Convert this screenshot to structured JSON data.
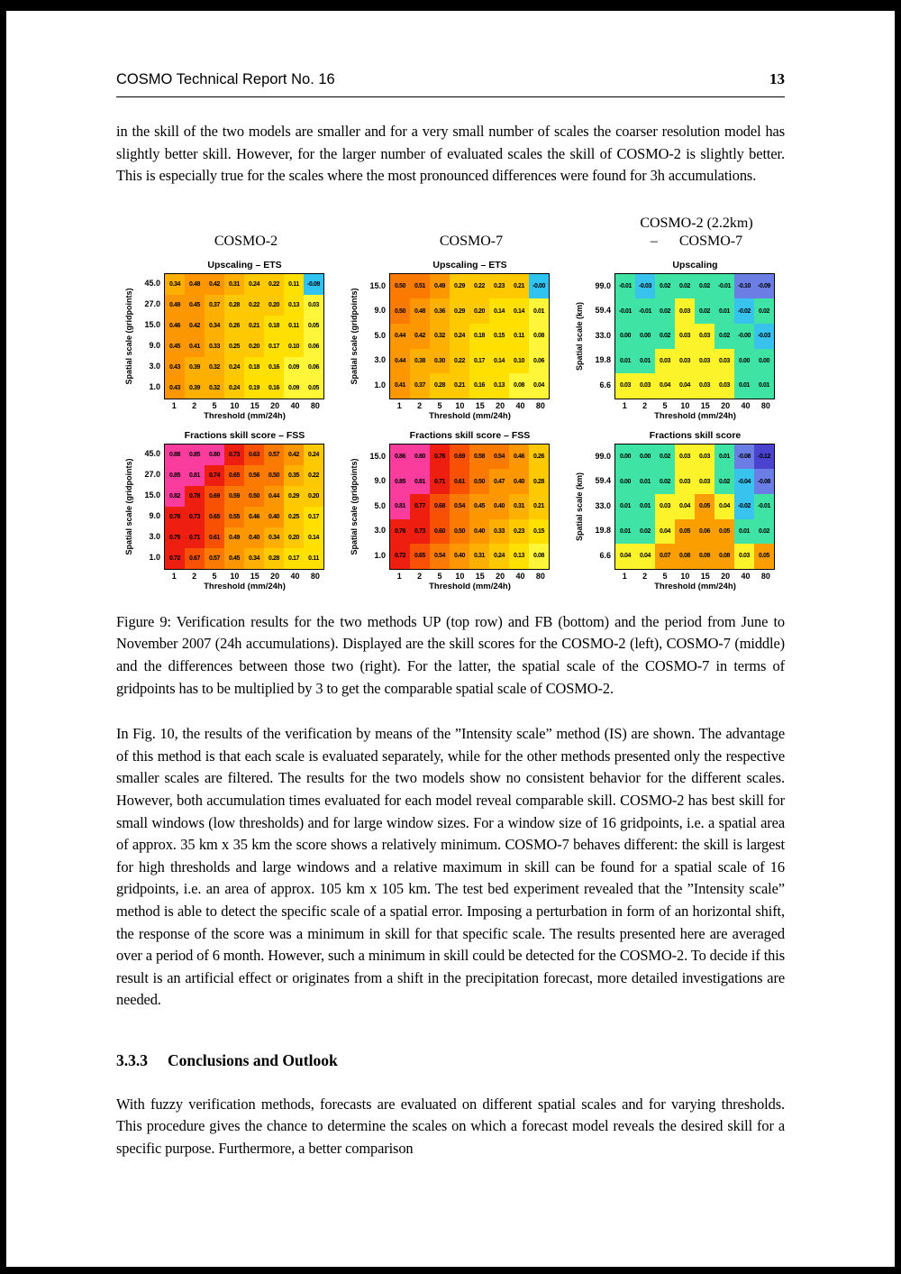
{
  "header": {
    "left": "COSMO Technical Report No. 16",
    "page_number": "13"
  },
  "paragraphs": {
    "p1": "in the skill of the two models are smaller and for a very small number of scales the coarser resolution model has slightly better skill. However, for the larger number of evaluated scales the skill of COSMO-2 is slightly better. This is especially true for the scales where the most pronounced differences were found for 3h accumulations.",
    "p2": "In Fig. 10, the results of the verification by means of the ”Intensity scale” method (IS) are shown.  The advantage of this method is that each scale is evaluated separately, while for the other methods presented only the respective smaller scales are filtered.  The results for the two models show no consistent behavior for the different scales.  However, both accumulation times evaluated for each model reveal comparable skill.  COSMO-2 has best skill for small windows (low thresholds) and for large window sizes.  For a window size of 16 gridpoints, i.e. a spatial area of approx. 35 km x 35 km the score shows a relatively minimum.  COSMO-7 behaves different:  the skill is largest for high thresholds and large windows and a relative maximum in skill can be found for a spatial scale of 16 gridpoints, i.e.  an area of approx. 105 km x 105 km.  The test bed experiment revealed that the ”Intensity scale” method is able to detect the specific scale of a spatial error.  Imposing a perturbation in form of an horizontal shift, the response of the score was a minimum in skill for that specific scale.  The results presented here are averaged over a period of 6 month.  However, such a minimum in skill could be detected for the COSMO-2.  To decide if this result is an artificial effect or originates from a shift in the precipitation forecast, more detailed investigations are needed.",
    "p3": "With fuzzy verification methods, forecasts are evaluated on different spatial scales and for varying thresholds.  This procedure gives the chance to determine the scales on which a forecast model reveals the desired skill for a specific purpose.  Furthermore, a better comparison"
  },
  "section_heading": {
    "number": "3.3.3",
    "title": "Conclusions and Outlook"
  },
  "figure": {
    "column_titles": [
      {
        "line1": "COSMO-2",
        "line2": ""
      },
      {
        "line1": "COSMO-7",
        "line2": ""
      },
      {
        "line1": "COSMO-2 (2.2km)",
        "line2": "–      COSMO-7"
      }
    ],
    "caption": "Figure 9:  Verification results for the two methods UP (top row) and FB (bottom) and the period from June to November 2007 (24h accumulations).  Displayed are the skill scores for the COSMO-2 (left), COSMO-7 (middle) and the differences between those two (right).  For the latter, the spatial scale of the COSMO-7 in terms of gridpoints has to be multiplied by 3 to get the comparable spatial scale of COSMO-2."
  },
  "chart_data": [
    {
      "type": "heatmap",
      "model": "COSMO-2",
      "title": "Upscaling – ETS",
      "xlabel": "Threshold (mm/24h)",
      "ylabel": "Spatial scale (gridpoints)",
      "x": [
        "1",
        "2",
        "5",
        "10",
        "15",
        "20",
        "40",
        "80"
      ],
      "y": [
        "45.0",
        "27.0",
        "15.0",
        "9.0",
        "3.0",
        "1.0"
      ],
      "palette": "score",
      "values": [
        [
          "0.34",
          "0.48",
          "0.42",
          "0.31",
          "0.24",
          "0.22",
          "0.11",
          "-0.09"
        ],
        [
          "0.49",
          "0.45",
          "0.37",
          "0.28",
          "0.22",
          "0.20",
          "0.13",
          "0.03"
        ],
        [
          "0.46",
          "0.42",
          "0.34",
          "0.26",
          "0.21",
          "0.18",
          "0.11",
          "0.05"
        ],
        [
          "0.45",
          "0.41",
          "0.33",
          "0.25",
          "0.20",
          "0.17",
          "0.10",
          "0.06"
        ],
        [
          "0.43",
          "0.39",
          "0.32",
          "0.24",
          "0.18",
          "0.16",
          "0.09",
          "0.06"
        ],
        [
          "0.43",
          "0.39",
          "0.32",
          "0.24",
          "0.19",
          "0.16",
          "0.09",
          "0.05"
        ]
      ]
    },
    {
      "type": "heatmap",
      "model": "COSMO-7",
      "title": "Upscaling – ETS",
      "xlabel": "Threshold (mm/24h)",
      "ylabel": "Spatial scale (gridpoints)",
      "x": [
        "1",
        "2",
        "5",
        "10",
        "15",
        "20",
        "40",
        "80"
      ],
      "y": [
        "15.0",
        "9.0",
        "5.0",
        "3.0",
        "1.0"
      ],
      "palette": "score",
      "values": [
        [
          "0.50",
          "0.51",
          "0.49",
          "0.29",
          "0.22",
          "0.23",
          "0.21",
          "-0.00"
        ],
        [
          "0.50",
          "0.48",
          "0.36",
          "0.29",
          "0.20",
          "0.14",
          "0.14",
          "0.01"
        ],
        [
          "0.44",
          "0.42",
          "0.32",
          "0.24",
          "0.18",
          "0.15",
          "0.11",
          "0.08"
        ],
        [
          "0.44",
          "0.38",
          "0.30",
          "0.22",
          "0.17",
          "0.14",
          "0.10",
          "0.06"
        ],
        [
          "0.41",
          "0.37",
          "0.28",
          "0.21",
          "0.16",
          "0.13",
          "0.08",
          "0.04"
        ]
      ]
    },
    {
      "type": "heatmap",
      "model": "COSMO-2 (2.2km) – COSMO-7",
      "title": "Upscaling",
      "xlabel": "Threshold (mm/24h)",
      "ylabel": "Spatial scale (km)",
      "x": [
        "1",
        "2",
        "5",
        "10",
        "15",
        "20",
        "40",
        "80"
      ],
      "y": [
        "99.0",
        "59.4",
        "33.0",
        "19.8",
        "6.6"
      ],
      "palette": "diff",
      "values": [
        [
          "-0.01",
          "-0.03",
          "0.02",
          "0.02",
          "0.02",
          "-0.01",
          "-0.10",
          "-0.09"
        ],
        [
          "-0.01",
          "-0.01",
          "0.02",
          "0.03",
          "0.02",
          "0.01",
          "-0.02",
          "0.02"
        ],
        [
          "0.00",
          "0.00",
          "0.02",
          "0.03",
          "0.03",
          "0.02",
          "-0.00",
          "-0.03"
        ],
        [
          "0.01",
          "0.01",
          "0.03",
          "0.03",
          "0.03",
          "0.03",
          "0.00",
          "0.00"
        ],
        [
          "0.03",
          "0.03",
          "0.04",
          "0.04",
          "0.03",
          "0.03",
          "0.01",
          "0.01"
        ]
      ]
    },
    {
      "type": "heatmap",
      "model": "COSMO-2",
      "title": "Fractions skill score – FSS",
      "xlabel": "Threshold (mm/24h)",
      "ylabel": "Spatial scale (gridpoints)",
      "x": [
        "1",
        "2",
        "5",
        "10",
        "15",
        "20",
        "40",
        "80"
      ],
      "y": [
        "45.0",
        "27.0",
        "15.0",
        "9.0",
        "3.0",
        "1.0"
      ],
      "palette": "score",
      "values": [
        [
          "0.88",
          "0.85",
          "0.80",
          "0.73",
          "0.63",
          "0.57",
          "0.42",
          "0.24"
        ],
        [
          "0.85",
          "0.81",
          "0.74",
          "0.65",
          "0.56",
          "0.50",
          "0.35",
          "0.22"
        ],
        [
          "0.82",
          "0.78",
          "0.69",
          "0.59",
          "0.50",
          "0.44",
          "0.29",
          "0.20"
        ],
        [
          "0.78",
          "0.73",
          "0.65",
          "0.55",
          "0.46",
          "0.40",
          "0.25",
          "0.17"
        ],
        [
          "0.75",
          "0.71",
          "0.61",
          "0.49",
          "0.40",
          "0.34",
          "0.20",
          "0.14"
        ],
        [
          "0.72",
          "0.67",
          "0.57",
          "0.45",
          "0.34",
          "0.28",
          "0.17",
          "0.11"
        ]
      ]
    },
    {
      "type": "heatmap",
      "model": "COSMO-7",
      "title": "Fractions skill score – FSS",
      "xlabel": "Threshold (mm/24h)",
      "ylabel": "Spatial scale (gridpoints)",
      "x": [
        "1",
        "2",
        "5",
        "10",
        "15",
        "20",
        "40",
        "80"
      ],
      "y": [
        "15.0",
        "9.0",
        "5.0",
        "3.0",
        "1.0"
      ],
      "palette": "score",
      "values": [
        [
          "0.86",
          "0.80",
          "0.76",
          "0.69",
          "0.58",
          "0.54",
          "0.46",
          "0.26"
        ],
        [
          "0.85",
          "0.81",
          "0.71",
          "0.61",
          "0.50",
          "0.47",
          "0.40",
          "0.28"
        ],
        [
          "0.81",
          "0.77",
          "0.68",
          "0.54",
          "0.45",
          "0.40",
          "0.31",
          "0.21"
        ],
        [
          "0.76",
          "0.73",
          "0.60",
          "0.50",
          "0.40",
          "0.33",
          "0.23",
          "0.15"
        ],
        [
          "0.72",
          "0.65",
          "0.54",
          "0.40",
          "0.31",
          "0.24",
          "0.13",
          "0.08"
        ]
      ]
    },
    {
      "type": "heatmap",
      "model": "COSMO-2 (2.2km) – COSMO-7",
      "title": "Fractions skill score",
      "xlabel": "Threshold (mm/24h)",
      "ylabel": "Spatial scale (km)",
      "x": [
        "1",
        "2",
        "5",
        "10",
        "15",
        "20",
        "40",
        "80"
      ],
      "y": [
        "99.0",
        "59.4",
        "33.0",
        "19.8",
        "6.6"
      ],
      "palette": "diff",
      "values": [
        [
          "0.00",
          "0.00",
          "0.02",
          "0.03",
          "0.03",
          "0.01",
          "-0.08",
          "-0.12"
        ],
        [
          "0.00",
          "0.01",
          "0.02",
          "0.03",
          "0.03",
          "0.02",
          "-0.04",
          "-0.08"
        ],
        [
          "0.01",
          "0.01",
          "0.03",
          "0.04",
          "0.05",
          "0.04",
          "-0.02",
          "-0.01"
        ],
        [
          "0.01",
          "0.02",
          "0.04",
          "0.05",
          "0.06",
          "0.05",
          "0.01",
          "0.02"
        ],
        [
          "0.04",
          "0.04",
          "0.07",
          "0.08",
          "0.09",
          "0.08",
          "0.03",
          "0.05"
        ]
      ]
    }
  ],
  "colors": {
    "score_stops": [
      [
        0.8,
        "#fa3c9c"
      ],
      [
        0.7,
        "#ee1e10"
      ],
      [
        0.6,
        "#f85104"
      ],
      [
        0.5,
        "#fb7a01"
      ],
      [
        0.4,
        "#fc9601"
      ],
      [
        0.3,
        "#fdb001"
      ],
      [
        0.2,
        "#fec901"
      ],
      [
        0.1,
        "#ffe001"
      ],
      [
        0.0,
        "#fff63a"
      ]
    ],
    "score_negative": "#2fc3f2",
    "diff": {
      "indigo": "#4a43cf",
      "blue": "#6b7ee6",
      "cyan": "#38c2ee",
      "green": "#3fe3a4",
      "yellow": "#fdf32b",
      "orange": "#fb9e01"
    }
  }
}
